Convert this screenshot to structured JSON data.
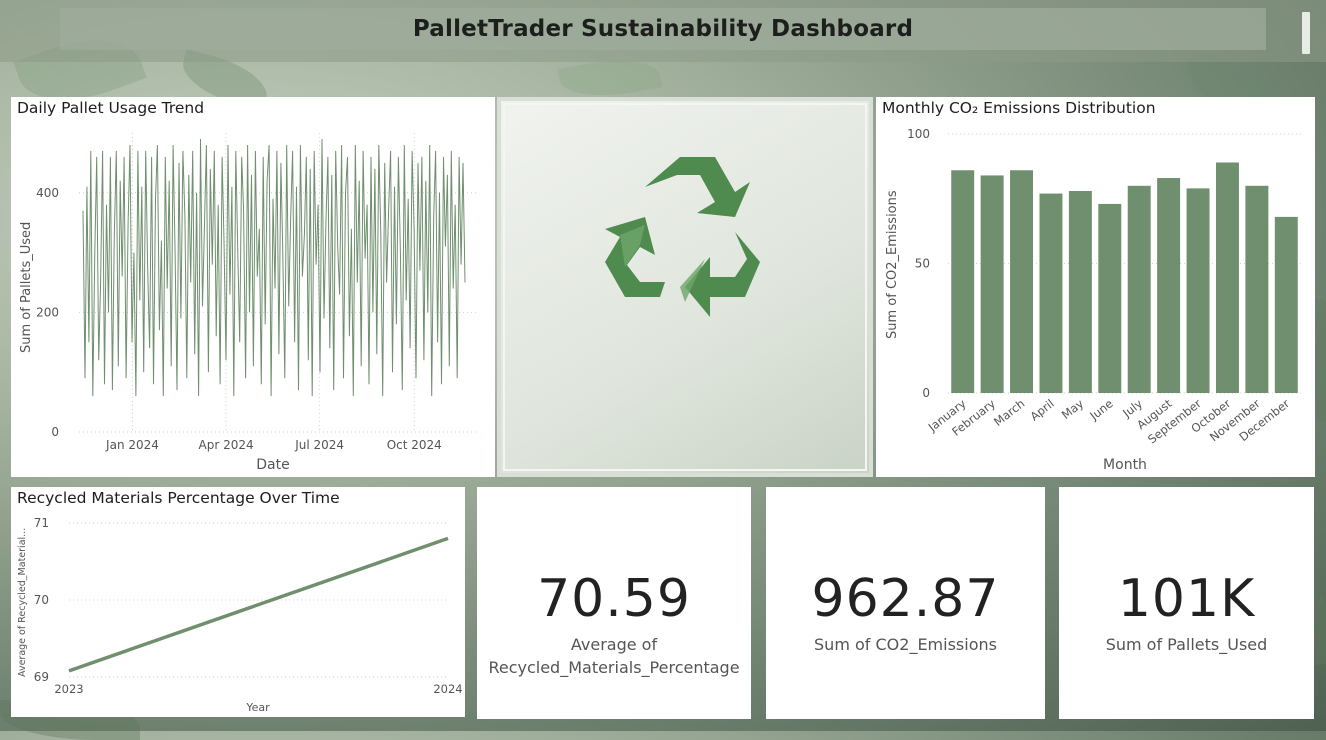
{
  "dashboard": {
    "title": "PalletTrader Sustainability Dashboard"
  },
  "colors": {
    "series": "#6f8f6e",
    "grid": "#cfcfcf",
    "recycle_icon": "#4f8a4f"
  },
  "icons": {
    "recycle": "recycle-icon"
  },
  "daily_chart": {
    "title": "Daily Pallet Usage Trend",
    "xlabel": "Date",
    "ylabel": "Sum of Pallets_Used",
    "x_ticks": [
      "Jan 2024",
      "Apr 2024",
      "Jul 2024",
      "Oct 2024"
    ],
    "y_ticks": [
      "0",
      "200",
      "400"
    ]
  },
  "co2_chart": {
    "title": "Monthly CO₂ Emissions Distribution",
    "xlabel": "Month",
    "ylabel": "Sum of CO2_Emissions",
    "y_ticks": [
      "0",
      "50",
      "100"
    ]
  },
  "recycled_chart": {
    "title": "Recycled Materials Percentage Over Time",
    "xlabel": "Year",
    "ylabel": "Average of Recycled_Material...",
    "x_ticks": [
      "2023",
      "2024"
    ],
    "y_ticks": [
      "69",
      "70",
      "71"
    ]
  },
  "kpis": {
    "recycled": {
      "value": "70.59",
      "label_line1": "Average of",
      "label_line2": "Recycled_Materials_Percentage"
    },
    "co2": {
      "value": "962.87",
      "label": "Sum of CO2_Emissions"
    },
    "pallets": {
      "value": "101K",
      "label": "Sum of Pallets_Used"
    }
  },
  "chart_data": [
    {
      "type": "line",
      "title": "Daily Pallet Usage Trend",
      "xlabel": "Date",
      "ylabel": "Sum of Pallets_Used",
      "x_range": [
        "2023-11-10",
        "2024-12-01"
      ],
      "ylim": [
        0,
        500
      ],
      "series": [
        {
          "values": [
            370,
            90,
            410,
            150,
            470,
            60,
            300,
            460,
            120,
            250,
            470,
            80,
            380,
            200,
            460,
            70,
            330,
            470,
            110,
            420,
            260,
            460,
            90,
            350,
            480,
            150,
            300,
            60,
            470,
            220,
            410,
            100,
            470,
            280,
            140,
            460,
            80,
            390,
            480,
            170,
            320,
            60,
            460,
            240,
            420,
            110,
            480,
            300,
            70,
            450,
            190,
            470,
            360,
            90,
            430,
            250,
            470,
            130,
            400,
            60,
            490,
            210,
            350,
            480,
            100,
            440,
            280,
            470,
            160,
            380,
            80,
            460,
            320,
            120,
            480,
            230,
            410,
            60,
            470,
            300,
            150,
            460,
            370,
            90,
            480,
            200,
            430,
            110,
            470,
            260,
            340,
            80,
            460,
            180,
            420,
            480,
            60,
            390,
            240,
            470,
            130,
            450,
            300,
            90,
            480,
            210,
            360,
            470,
            150,
            410,
            70,
            480,
            260,
            330,
            460,
            120,
            440,
            60,
            470,
            280,
            380,
            100,
            490,
            190,
            350,
            460,
            140,
            430,
            70,
            470,
            310,
            230,
            480,
            90,
            400,
            460,
            160,
            340,
            60,
            480,
            250,
            420,
            110,
            470,
            290,
            380,
            80,
            460,
            200,
            440,
            130,
            480,
            330,
            60,
            450,
            250,
            370,
            470,
            100,
            410,
            180,
            460,
            300,
            70,
            480,
            220,
            390,
            140,
            470,
            340,
            90,
            450,
            270,
            460,
            120,
            420,
            200,
            480,
            60,
            360,
            470,
            150,
            400,
            80,
            460,
            310,
            430,
            110,
            470,
            240,
            380,
            90,
            460,
            280,
            450,
            250
          ]
        }
      ]
    },
    {
      "type": "bar",
      "title": "Monthly CO₂ Emissions Distribution",
      "xlabel": "Month",
      "ylabel": "Sum of CO2_Emissions",
      "categories": [
        "January",
        "February",
        "March",
        "April",
        "May",
        "June",
        "July",
        "August",
        "September",
        "October",
        "November",
        "December"
      ],
      "values": [
        86,
        84,
        86,
        77,
        78,
        73,
        80,
        83,
        79,
        89,
        80,
        68
      ],
      "ylim": [
        0,
        100
      ]
    },
    {
      "type": "line",
      "title": "Recycled Materials Percentage Over Time",
      "xlabel": "Year",
      "ylabel": "Average of Recycled_Material...",
      "x": [
        "2023",
        "2024"
      ],
      "values": [
        69.08,
        70.8
      ],
      "ylim": [
        69,
        71
      ]
    }
  ]
}
